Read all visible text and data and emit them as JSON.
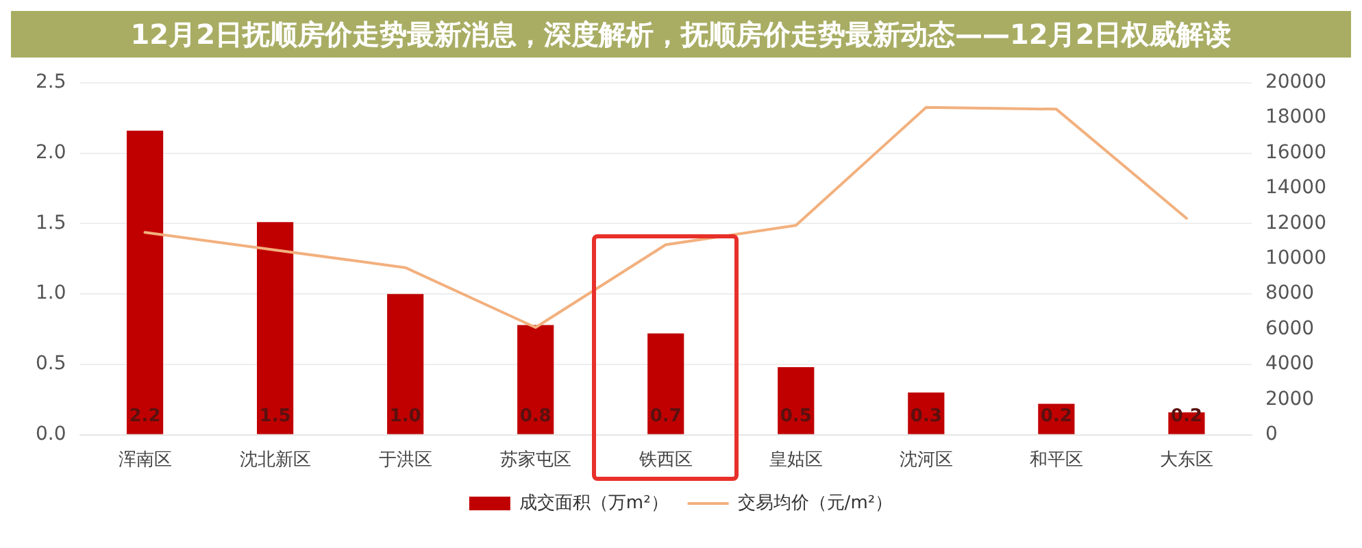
{
  "chart_data": {
    "type": "bar",
    "title": "12月2日抚顺房价走势最新消息，深度解析，抚顺房价走势最新动态——12月2日权威解读",
    "categories": [
      "浑南区",
      "沈北新区",
      "于洪区",
      "苏家屯区",
      "铁西区",
      "皇姑区",
      "沈河区",
      "和平区",
      "大东区"
    ],
    "series": [
      {
        "name": "成交面积（万m²）",
        "color": "#c00000",
        "values": [
          2.16,
          1.51,
          1.0,
          0.78,
          0.72,
          0.48,
          0.3,
          0.22,
          0.16
        ],
        "value_labels": [
          "2.2",
          "1.5",
          "1.0",
          "0.8",
          "0.7",
          "0.5",
          "0.3",
          "0.2",
          "0.2"
        ]
      },
      {
        "name": "交易均价（元/m²）",
        "type": "line",
        "axis": "y2",
        "color": "#f2b07e",
        "values": [
          11500,
          10500,
          9500,
          6100,
          10800,
          11900,
          18600,
          18500,
          12300
        ]
      }
    ],
    "ylim": [
      0,
      2.5
    ],
    "yticks": [
      {
        "value": 0,
        "label": "0.0"
      },
      0.5,
      {
        "value": 1,
        "label": "1.0"
      },
      1.5,
      {
        "value": 2,
        "label": "2.0"
      },
      2.5
    ],
    "y2lim": [
      0,
      20000
    ],
    "y2ticks": [
      0,
      2000,
      4000,
      6000,
      8000,
      10000,
      12000,
      14000,
      16000,
      18000,
      20000
    ],
    "grid": "y",
    "legend": "bottom",
    "marker": "none"
  }
}
